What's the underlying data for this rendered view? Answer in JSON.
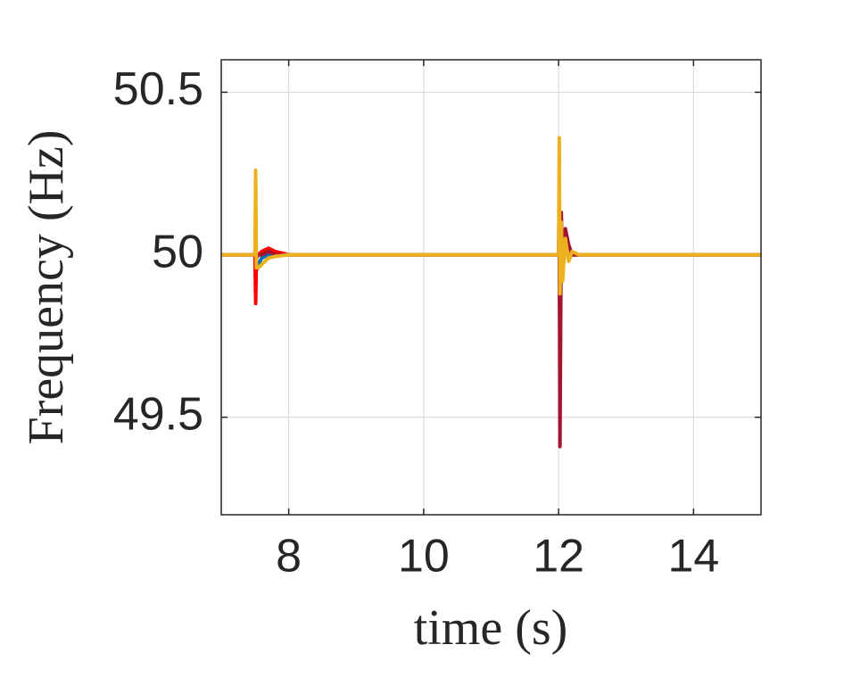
{
  "chart_data": {
    "type": "line",
    "xlabel": "time (s)",
    "ylabel": "Frequency (Hz)",
    "x": [
      7,
      7.5,
      7.51,
      7.52,
      7.55,
      7.6,
      7.7,
      7.8,
      8.0,
      8.5,
      10,
      12,
      12.01,
      12.02,
      12.04,
      12.06,
      12.1,
      12.15,
      12.2,
      12.3,
      12.5,
      12.8,
      15
    ],
    "series": [
      {
        "color": "#0072bd",
        "values": [
          50,
          50,
          50.1,
          49.95,
          49.97,
          49.99,
          50,
          50,
          50,
          50,
          50,
          50,
          50.19,
          49.7,
          50.05,
          49.97,
          50.02,
          49.99,
          50,
          50,
          50,
          50,
          50
        ]
      },
      {
        "color": "#ff0000",
        "values": [
          50,
          50,
          49.85,
          49.99,
          50,
          50.01,
          50.02,
          50.01,
          50,
          50,
          50,
          50,
          50.05,
          49.97,
          50.02,
          49.99,
          50.01,
          50,
          50,
          50,
          50,
          50,
          50
        ]
      },
      {
        "color": "#a2142f",
        "values": [
          50,
          50,
          50.02,
          49.99,
          50,
          50,
          50.01,
          50,
          50,
          50,
          50,
          50,
          50.1,
          49.41,
          50.13,
          49.95,
          50.08,
          50.03,
          50,
          50,
          50,
          50,
          50
        ]
      },
      {
        "color": "#edb120",
        "values": [
          50,
          50,
          50.26,
          49.96,
          49.96,
          49.97,
          49.99,
          49.995,
          50,
          50,
          50,
          50,
          50.36,
          49.88,
          50.1,
          49.92,
          50.05,
          49.98,
          50.01,
          50,
          50,
          50,
          50
        ]
      }
    ],
    "xlim": [
      7,
      15
    ],
    "xticks": [
      8,
      10,
      12,
      14
    ],
    "ylim": [
      49.2,
      50.6
    ],
    "yticks": [
      49.5,
      50,
      50.5
    ],
    "grid": true
  }
}
